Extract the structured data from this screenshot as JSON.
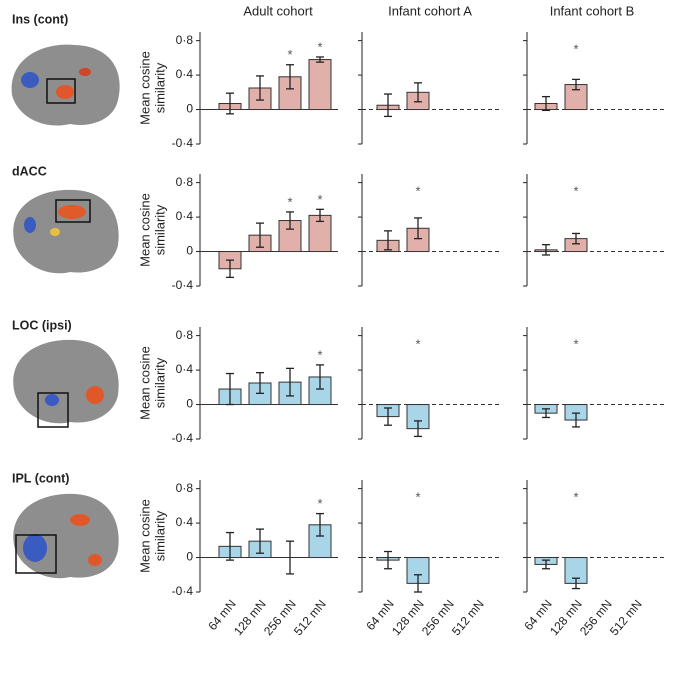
{
  "column_titles": [
    "Adult cohort",
    "Infant cohort A",
    "Infant cohort B"
  ],
  "row_labels": [
    "Ins (cont)",
    "dACC",
    "LOC (ipsi)",
    "IPL (cont)"
  ],
  "chart_data": [
    {
      "type": "bar",
      "ylabel": [
        "Mean cosine",
        "similarity"
      ],
      "categories": [
        null,
        null,
        null,
        null
      ],
      "values": [
        0.07,
        0.25,
        0.38,
        0.58
      ],
      "errors": [
        0.12,
        0.14,
        0.14,
        0.03
      ],
      "significance": [
        null,
        null,
        "*",
        "*"
      ],
      "color": "#e2b0aa",
      "ylim": [
        -0.4,
        0.9
      ],
      "yticks": [
        {
          "value": -0.4,
          "label": "-0·4"
        },
        0,
        {
          "value": 0.4,
          "label": "0·4"
        },
        {
          "value": 0.8,
          "label": "0·8"
        }
      ],
      "zero_line": "solid"
    },
    {
      "type": "bar",
      "categories": [
        null,
        null,
        null,
        null
      ],
      "values": [
        0.05,
        0.2,
        null,
        null
      ],
      "errors": [
        0.13,
        0.11,
        null,
        null
      ],
      "significance": [
        null,
        null,
        null,
        null
      ],
      "color": "#e2b0aa",
      "ylim": [
        -0.4,
        0.9
      ],
      "yticks": [
        -0.4,
        0,
        0.4,
        0.8
      ],
      "zero_line": "dashed"
    },
    {
      "type": "bar",
      "categories": [
        null,
        null,
        null,
        null
      ],
      "values": [
        0.07,
        0.29,
        null,
        null
      ],
      "errors": [
        0.08,
        0.06,
        null,
        null
      ],
      "significance": [
        null,
        "*",
        null,
        null
      ],
      "color": "#e2b0aa",
      "ylim": [
        -0.4,
        0.9
      ],
      "yticks": [
        -0.4,
        0,
        0.4,
        0.8
      ],
      "zero_line": "dashed"
    },
    {
      "type": "bar",
      "ylabel": [
        "Mean cosine",
        "similarity"
      ],
      "categories": [
        null,
        null,
        null,
        null
      ],
      "values": [
        -0.2,
        0.19,
        0.36,
        0.42
      ],
      "errors": [
        0.1,
        0.14,
        0.1,
        0.07
      ],
      "significance": [
        null,
        null,
        "*",
        "*"
      ],
      "color": "#e2b0aa",
      "ylim": [
        -0.4,
        0.9
      ],
      "yticks": [
        {
          "value": -0.4,
          "label": "-0·4"
        },
        0,
        {
          "value": 0.4,
          "label": "0·4"
        },
        {
          "value": 0.8,
          "label": "0·8"
        }
      ],
      "zero_line": "solid"
    },
    {
      "type": "bar",
      "categories": [
        null,
        null,
        null,
        null
      ],
      "values": [
        0.13,
        0.27,
        null,
        null
      ],
      "errors": [
        0.11,
        0.12,
        null,
        null
      ],
      "significance": [
        null,
        "*",
        null,
        null
      ],
      "color": "#e2b0aa",
      "ylim": [
        -0.4,
        0.9
      ],
      "yticks": [
        -0.4,
        0,
        0.4,
        0.8
      ],
      "zero_line": "dashed"
    },
    {
      "type": "bar",
      "categories": [
        null,
        null,
        null,
        null
      ],
      "values": [
        0.02,
        0.15,
        null,
        null
      ],
      "errors": [
        0.06,
        0.06,
        null,
        null
      ],
      "significance": [
        null,
        "*",
        null,
        null
      ],
      "color": "#e2b0aa",
      "ylim": [
        -0.4,
        0.9
      ],
      "yticks": [
        -0.4,
        0,
        0.4,
        0.8
      ],
      "zero_line": "dashed"
    },
    {
      "type": "bar",
      "ylabel": [
        "Mean cosine",
        "similarity"
      ],
      "categories": [
        null,
        null,
        null,
        null
      ],
      "values": [
        0.18,
        0.25,
        0.26,
        0.32
      ],
      "errors": [
        0.18,
        0.12,
        0.16,
        0.14
      ],
      "significance": [
        null,
        null,
        null,
        "*"
      ],
      "color": "#a9d5e8",
      "ylim": [
        -0.4,
        0.9
      ],
      "yticks": [
        {
          "value": -0.4,
          "label": "-0·4"
        },
        0,
        {
          "value": 0.4,
          "label": "0·4"
        },
        {
          "value": 0.8,
          "label": "0·8"
        }
      ],
      "zero_line": "solid"
    },
    {
      "type": "bar",
      "categories": [
        null,
        null,
        null,
        null
      ],
      "values": [
        -0.14,
        -0.28,
        null,
        null
      ],
      "errors": [
        0.1,
        0.09,
        null,
        null
      ],
      "significance": [
        null,
        "*",
        null,
        null
      ],
      "color": "#a9d5e8",
      "ylim": [
        -0.4,
        0.9
      ],
      "yticks": [
        -0.4,
        0,
        0.4,
        0.8
      ],
      "zero_line": "dashed"
    },
    {
      "type": "bar",
      "categories": [
        null,
        null,
        null,
        null
      ],
      "values": [
        -0.1,
        -0.18,
        null,
        null
      ],
      "errors": [
        0.05,
        0.08,
        null,
        null
      ],
      "significance": [
        null,
        "*",
        null,
        null
      ],
      "color": "#a9d5e8",
      "ylim": [
        -0.4,
        0.9
      ],
      "yticks": [
        -0.4,
        0,
        0.4,
        0.8
      ],
      "zero_line": "dashed"
    },
    {
      "type": "bar",
      "ylabel": [
        "Mean cosine",
        "similarity"
      ],
      "categories": [
        "64 mN",
        "128 mN",
        "256 mN",
        "512 mN"
      ],
      "values": [
        0.13,
        0.19,
        0,
        0.38
      ],
      "errors": [
        0.16,
        0.14,
        0.19,
        0.13
      ],
      "significance": [
        null,
        null,
        null,
        "*"
      ],
      "color": "#a9d5e8",
      "ylim": [
        -0.4,
        0.9
      ],
      "yticks": [
        {
          "value": -0.4,
          "label": "-0·4"
        },
        0,
        {
          "value": 0.4,
          "label": "0·4"
        },
        {
          "value": 0.8,
          "label": "0·8"
        }
      ],
      "zero_line": "solid"
    },
    {
      "type": "bar",
      "categories": [
        "64 mN",
        "128 mN",
        "256 mN",
        "512 mN"
      ],
      "values": [
        -0.03,
        -0.3,
        null,
        null
      ],
      "errors": [
        0.1,
        0.1,
        null,
        null
      ],
      "significance": [
        null,
        "*",
        null,
        null
      ],
      "color": "#a9d5e8",
      "ylim": [
        -0.4,
        0.9
      ],
      "yticks": [
        -0.4,
        0,
        0.4,
        0.8
      ],
      "zero_line": "dashed"
    },
    {
      "type": "bar",
      "categories": [
        "64 mN",
        "128 mN",
        "256 mN",
        "512 mN"
      ],
      "values": [
        -0.08,
        -0.3,
        null,
        null
      ],
      "errors": [
        0.05,
        0.06,
        null,
        null
      ],
      "significance": [
        null,
        "*",
        null,
        null
      ],
      "color": "#a9d5e8",
      "ylim": [
        -0.4,
        0.9
      ],
      "yticks": [
        -0.4,
        0,
        0.4,
        0.8
      ],
      "zero_line": "dashed"
    }
  ]
}
